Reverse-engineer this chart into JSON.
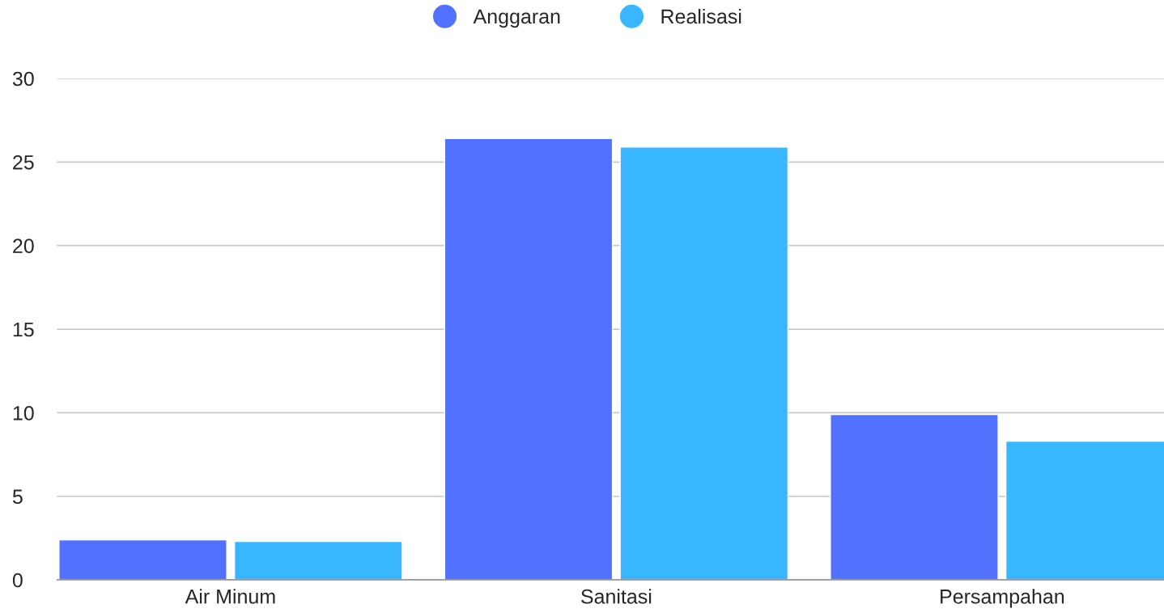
{
  "chart_data": {
    "type": "bar",
    "categories": [
      "Air Minum",
      "Sanitasi",
      "Persampahan"
    ],
    "series": [
      {
        "name": "Anggaran",
        "color": "#5271ff",
        "values": [
          2.4,
          26.4,
          9.9
        ]
      },
      {
        "name": "Realisasi",
        "color": "#38b6ff",
        "values": [
          2.3,
          25.9,
          8.3
        ]
      }
    ],
    "ylim": [
      0,
      30
    ],
    "yticks": [
      0,
      5,
      10,
      15,
      20,
      25,
      30
    ],
    "grid": "y",
    "legend": "top"
  }
}
